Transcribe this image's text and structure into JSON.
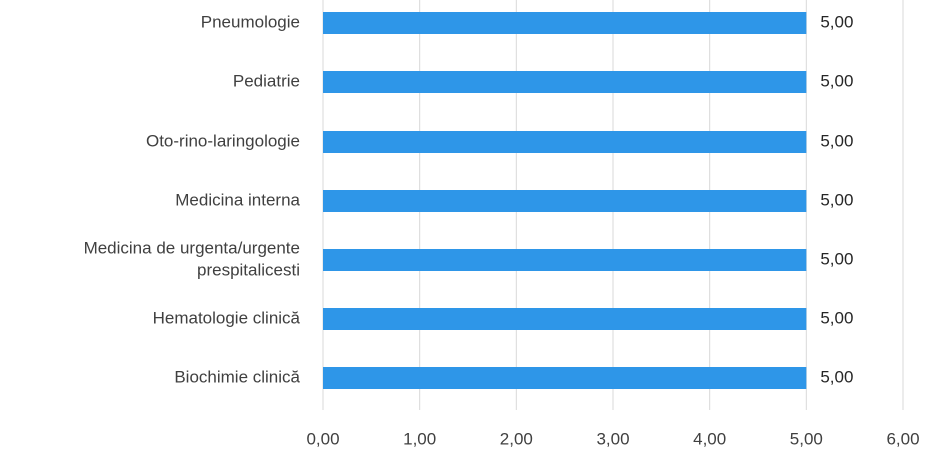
{
  "chart_data": {
    "type": "bar",
    "orientation": "horizontal",
    "categories": [
      "Pneumologie",
      "Pediatrie",
      "Oto-rino-laringologie",
      "Medicina interna",
      "Medicina de urgenta/urgente prespitalicesti",
      "Hematologie clinică",
      "Biochimie clinică"
    ],
    "category_label_lines": [
      [
        "Pneumologie"
      ],
      [
        "Pediatrie"
      ],
      [
        "Oto-rino-laringologie"
      ],
      [
        "Medicina interna"
      ],
      [
        "Medicina de urgenta/urgente",
        "prespitalicesti"
      ],
      [
        "Hematologie clinică"
      ],
      [
        "Biochimie clinică"
      ]
    ],
    "values": [
      5,
      5,
      5,
      5,
      5,
      5,
      5
    ],
    "data_labels": [
      "5,00",
      "5,00",
      "5,00",
      "5,00",
      "5,00",
      "5,00",
      "5,00"
    ],
    "xlim": [
      0,
      6
    ],
    "x_ticks": [
      0,
      1,
      2,
      3,
      4,
      5,
      6
    ],
    "x_tick_labels": [
      "0,00",
      "1,00",
      "2,00",
      "3,00",
      "4,00",
      "5,00",
      "6,00"
    ],
    "title": "",
    "xlabel": "",
    "ylabel": "",
    "grid": true,
    "legend": "none",
    "bar_color": "#2e96e8"
  }
}
